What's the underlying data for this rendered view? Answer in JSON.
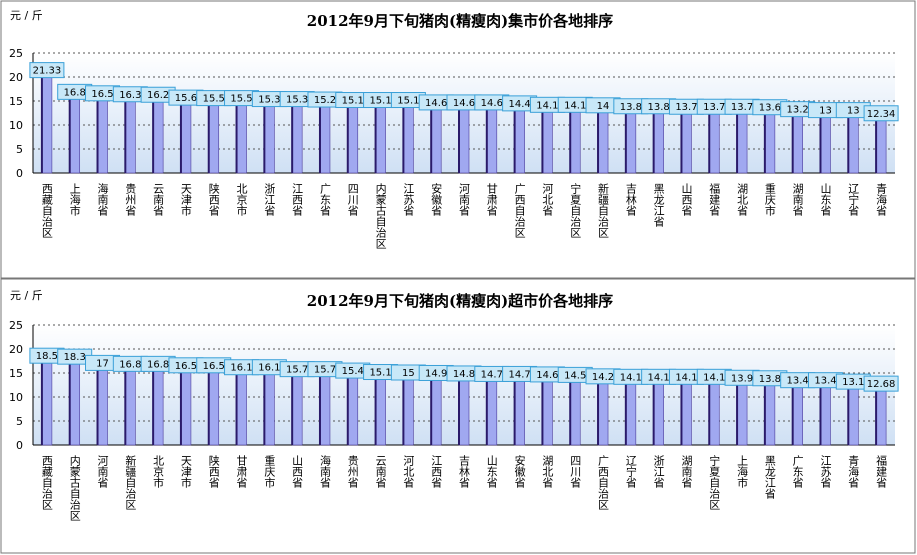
{
  "chart_data": [
    {
      "type": "bar",
      "title": "2012年9月下旬猪肉(精瘦肉)集市价各地排序",
      "y_label": "元 / 斤",
      "categories": [
        "西藏自治区",
        "上海市",
        "海南省",
        "贵州省",
        "云南省",
        "天津市",
        "陕西省",
        "北京市",
        "浙江省",
        "江西省",
        "广东省",
        "四川省",
        "内蒙古自治区",
        "江苏省",
        "安徽省",
        "河南省",
        "甘肃省",
        "广西自治区",
        "河北省",
        "宁夏自治区",
        "新疆自治区",
        "吉林省",
        "黑龙江省",
        "山西省",
        "福建省",
        "湖北省",
        "重庆市",
        "湖南省",
        "山东省",
        "辽宁省",
        "青海省"
      ],
      "values": [
        21.33,
        16.8,
        16.5,
        16.3,
        16.2,
        15.6,
        15.5,
        15.5,
        15.3,
        15.3,
        15.2,
        15.1,
        15.1,
        15.1,
        14.6,
        14.6,
        14.6,
        14.4,
        14.1,
        14.1,
        14.0,
        13.8,
        13.8,
        13.7,
        13.7,
        13.7,
        13.6,
        13.2,
        13.0,
        13.0,
        12.34
      ],
      "color": "#a0a8f0",
      "ylim": [
        0,
        25
      ],
      "yticks": [
        0,
        5,
        10,
        15,
        20,
        25
      ],
      "grid": true
    },
    {
      "type": "bar",
      "title": "2012年9月下旬猪肉(精瘦肉)超市价各地排序",
      "y_label": "元 / 斤",
      "categories": [
        "西藏自治区",
        "内蒙古自治区",
        "河南省",
        "新疆自治区",
        "北京市",
        "天津市",
        "陕西省",
        "甘肃省",
        "重庆市",
        "山西省",
        "海南省",
        "贵州省",
        "云南省",
        "河北省",
        "江西省",
        "吉林省",
        "山东省",
        "安徽省",
        "湖北省",
        "四川省",
        "广西自治区",
        "辽宁省",
        "浙江省",
        "湖南省",
        "宁夏自治区",
        "上海市",
        "黑龙江省",
        "广东省",
        "江苏省",
        "青海省",
        "福建省"
      ],
      "values": [
        18.5,
        18.3,
        17.0,
        16.8,
        16.8,
        16.5,
        16.5,
        16.1,
        16.1,
        15.7,
        15.7,
        15.4,
        15.1,
        15.0,
        14.9,
        14.8,
        14.7,
        14.7,
        14.6,
        14.5,
        14.2,
        14.1,
        14.1,
        14.1,
        14.1,
        13.9,
        13.8,
        13.4,
        13.4,
        13.1,
        12.68
      ],
      "color": "#a0a8f0",
      "ylim": [
        0,
        25
      ],
      "yticks": [
        0,
        5,
        10,
        15,
        20,
        25
      ],
      "grid": true
    }
  ]
}
